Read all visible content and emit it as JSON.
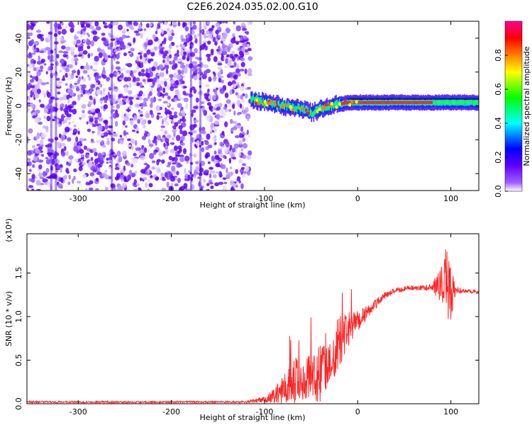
{
  "title": "C2E6.2024.035.02.00.G10",
  "chart_data": [
    {
      "type": "heatmap",
      "name": "spectrogram",
      "xlabel": "Height of straight line (km)",
      "ylabel": "Frequency (Hz)",
      "xlim": [
        -355,
        130
      ],
      "ylim": [
        -50,
        50
      ],
      "x_ticks": [
        -300,
        -200,
        -100,
        0,
        100
      ],
      "x_tick_labels": [
        "-300",
        "-200",
        "-100",
        "0",
        "100"
      ],
      "y_ticks": [
        -40,
        -20,
        0,
        20,
        40
      ],
      "y_tick_labels": [
        "-40",
        "-20",
        "0",
        "20",
        "40"
      ],
      "noise_region": {
        "x": [
          -355,
          -115
        ],
        "y": [
          -50,
          50
        ]
      },
      "signal_trace": {
        "x": [
          -115,
          -100,
          -90,
          -80,
          -70,
          -60,
          -50,
          -40,
          -30,
          -20,
          -10,
          0,
          20,
          40,
          60,
          80,
          100,
          130
        ],
        "freq": [
          4,
          2,
          1,
          0,
          -1,
          -2,
          -4,
          -2,
          0,
          1,
          2,
          2,
          2,
          2,
          2,
          2,
          2,
          2
        ]
      },
      "colorbar": {
        "label": "Normalized spectral amplitude",
        "ticks": [
          0.0,
          0.2,
          0.4,
          0.6,
          0.8
        ],
        "tick_labels": [
          "0.0",
          "0.2",
          "0.4",
          "0.6",
          "0.8"
        ],
        "range": [
          0,
          1
        ],
        "colors": [
          "#ffffff",
          "#8000ff",
          "#0000ff",
          "#00ffff",
          "#00ff00",
          "#ffff00",
          "#ff8000",
          "#ff0000",
          "#ff0080"
        ]
      }
    },
    {
      "type": "line",
      "name": "snr",
      "xlabel": "Height of straight line (km)",
      "ylabel": "SNR (10 * v/v)",
      "y_multiplier": "(x10⁴)",
      "xlim": [
        -355,
        130
      ],
      "ylim": [
        0,
        1.95
      ],
      "x_ticks": [
        -300,
        -200,
        -100,
        0,
        100
      ],
      "x_tick_labels": [
        "-300",
        "-200",
        "-100",
        "0",
        "100"
      ],
      "y_ticks": [
        0.0,
        0.5,
        1.0,
        1.5
      ],
      "y_tick_labels": [
        "0.0",
        "0.5",
        "1.0",
        "1.5"
      ],
      "color": "#ff0000",
      "x": [
        -355,
        -300,
        -250,
        -200,
        -150,
        -120,
        -100,
        -90,
        -80,
        -70,
        -60,
        -50,
        -40,
        -30,
        -20,
        -10,
        0,
        10,
        20,
        30,
        40,
        50,
        60,
        70,
        80,
        90,
        95,
        100,
        105,
        110,
        120,
        130
      ],
      "y": [
        0.02,
        0.02,
        0.02,
        0.02,
        0.02,
        0.02,
        0.05,
        0.08,
        0.12,
        0.25,
        0.3,
        0.25,
        0.35,
        0.55,
        0.7,
        0.85,
        0.95,
        1.05,
        1.15,
        1.25,
        1.3,
        1.32,
        1.33,
        1.33,
        1.34,
        1.35,
        1.4,
        1.3,
        1.3,
        1.3,
        1.29,
        1.28
      ],
      "noise": [
        0.01,
        0.01,
        0.01,
        0.01,
        0.01,
        0.01,
        0.04,
        0.1,
        0.2,
        0.3,
        0.25,
        0.3,
        0.35,
        0.35,
        0.3,
        0.2,
        0.12,
        0.08,
        0.06,
        0.04,
        0.03,
        0.03,
        0.03,
        0.03,
        0.04,
        0.25,
        0.45,
        0.35,
        0.05,
        0.03,
        0.02,
        0.02
      ]
    }
  ]
}
